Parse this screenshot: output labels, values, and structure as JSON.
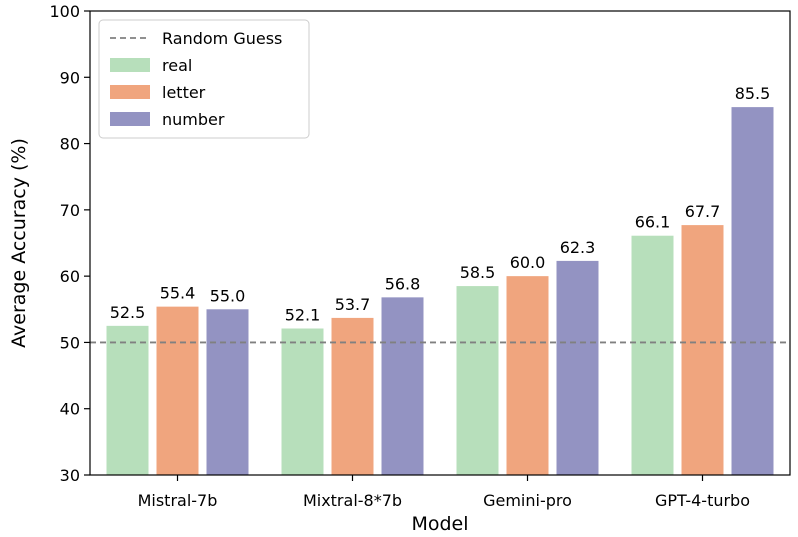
{
  "chart_data": {
    "type": "bar",
    "title": "",
    "xlabel": "Model",
    "ylabel": "Average Accuracy (%)",
    "ylim": [
      30,
      100
    ],
    "yticks": [
      30,
      40,
      50,
      60,
      70,
      80,
      90,
      100
    ],
    "categories": [
      "Mistral-7b",
      "Mixtral-8*7b",
      "Gemini-pro",
      "GPT-4-turbo"
    ],
    "series": [
      {
        "name": "real",
        "color": "#b7dfbb",
        "values": [
          52.5,
          52.1,
          58.5,
          66.1
        ],
        "labels": [
          "52.5",
          "52.1",
          "58.5",
          "66.1"
        ]
      },
      {
        "name": "letter",
        "color": "#f0a57e",
        "values": [
          55.4,
          53.7,
          60.0,
          67.7
        ],
        "labels": [
          "55.4",
          "53.7",
          "60.0",
          "67.7"
        ]
      },
      {
        "name": "number",
        "color": "#9393c2",
        "values": [
          55.0,
          56.8,
          62.3,
          85.5
        ],
        "labels": [
          "55.0",
          "56.8",
          "62.3",
          "85.5"
        ]
      }
    ],
    "reference_line": {
      "name": "Random Guess",
      "value": 50,
      "color": "#808080",
      "style": "dashed"
    },
    "legend": {
      "placement": "top-left"
    },
    "grid": false
  }
}
